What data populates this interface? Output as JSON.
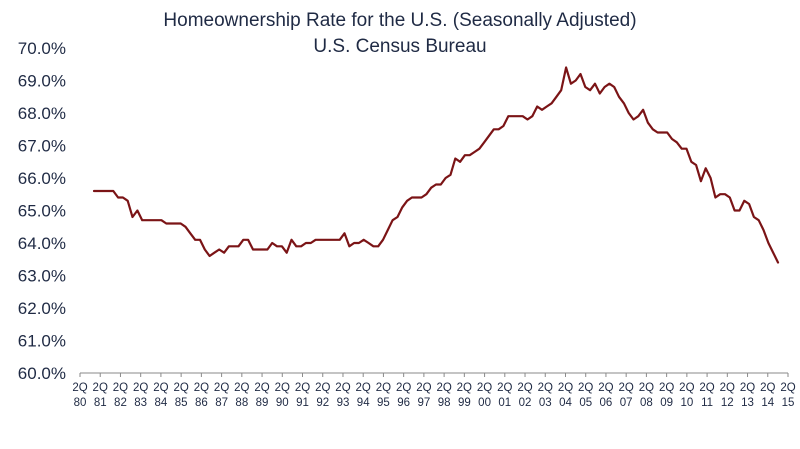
{
  "chart_data": {
    "type": "line",
    "title": "Homeownership Rate for the U.S. (Seasonally Adjusted)",
    "subtitle": "U.S. Census Bureau",
    "xlabel": "",
    "ylabel": "",
    "ylim": [
      60.0,
      70.0
    ],
    "y_tick_labels": [
      "60.0%",
      "61.0%",
      "62.0%",
      "63.0%",
      "64.0%",
      "65.0%",
      "66.0%",
      "67.0%",
      "68.0%",
      "69.0%",
      "70.0%"
    ],
    "x_tick_labels": [
      {
        "q": "2Q",
        "yr": "80"
      },
      {
        "q": "2Q",
        "yr": "81"
      },
      {
        "q": "2Q",
        "yr": "82"
      },
      {
        "q": "2Q",
        "yr": "83"
      },
      {
        "q": "2Q",
        "yr": "84"
      },
      {
        "q": "2Q",
        "yr": "85"
      },
      {
        "q": "2Q",
        "yr": "86"
      },
      {
        "q": "2Q",
        "yr": "87"
      },
      {
        "q": "2Q",
        "yr": "88"
      },
      {
        "q": "2Q",
        "yr": "89"
      },
      {
        "q": "2Q",
        "yr": "90"
      },
      {
        "q": "2Q",
        "yr": "91"
      },
      {
        "q": "2Q",
        "yr": "92"
      },
      {
        "q": "2Q",
        "yr": "93"
      },
      {
        "q": "2Q",
        "yr": "94"
      },
      {
        "q": "2Q",
        "yr": "95"
      },
      {
        "q": "2Q",
        "yr": "96"
      },
      {
        "q": "2Q",
        "yr": "97"
      },
      {
        "q": "2Q",
        "yr": "98"
      },
      {
        "q": "2Q",
        "yr": "99"
      },
      {
        "q": "2Q",
        "yr": "00"
      },
      {
        "q": "2Q",
        "yr": "01"
      },
      {
        "q": "2Q",
        "yr": "02"
      },
      {
        "q": "2Q",
        "yr": "03"
      },
      {
        "q": "2Q",
        "yr": "04"
      },
      {
        "q": "2Q",
        "yr": "05"
      },
      {
        "q": "2Q",
        "yr": "06"
      },
      {
        "q": "2Q",
        "yr": "07"
      },
      {
        "q": "2Q",
        "yr": "08"
      },
      {
        "q": "2Q",
        "yr": "09"
      },
      {
        "q": "2Q",
        "yr": "10"
      },
      {
        "q": "2Q",
        "yr": "11"
      },
      {
        "q": "2Q",
        "yr": "12"
      },
      {
        "q": "2Q",
        "yr": "13"
      },
      {
        "q": "2Q",
        "yr": "14"
      },
      {
        "q": "2Q",
        "yr": "15"
      }
    ],
    "grid": false,
    "legend": "none",
    "line_color": "#7b1416",
    "text_color": "#1f2a44",
    "series": [
      {
        "values": [
          65.6,
          65.6,
          65.6,
          65.6,
          65.6,
          65.4,
          65.4,
          65.3,
          64.8,
          65.0,
          64.7,
          64.7,
          64.7,
          64.7,
          64.7,
          64.6,
          64.6,
          64.6,
          64.6,
          64.5,
          64.3,
          64.1,
          64.1,
          63.8,
          63.6,
          63.7,
          63.8,
          63.7,
          63.9,
          63.9,
          63.9,
          64.1,
          64.1,
          63.8,
          63.8,
          63.8,
          63.8,
          64.0,
          63.9,
          63.9,
          63.7,
          64.1,
          63.9,
          63.9,
          64.0,
          64.0,
          64.1,
          64.1,
          64.1,
          64.1,
          64.1,
          64.1,
          64.3,
          63.9,
          64.0,
          64.0,
          64.1,
          64.0,
          63.9,
          63.9,
          64.1,
          64.4,
          64.7,
          64.8,
          65.1,
          65.3,
          65.4,
          65.4,
          65.4,
          65.5,
          65.7,
          65.8,
          65.8,
          66.0,
          66.1,
          66.6,
          66.5,
          66.7,
          66.7,
          66.8,
          66.9,
          67.1,
          67.3,
          67.5,
          67.5,
          67.6,
          67.9,
          67.9,
          67.9,
          67.9,
          67.8,
          67.9,
          68.2,
          68.1,
          68.2,
          68.3,
          68.5,
          68.7,
          69.4,
          68.9,
          69.0,
          69.2,
          68.8,
          68.7,
          68.9,
          68.6,
          68.8,
          68.9,
          68.8,
          68.5,
          68.3,
          68.0,
          67.8,
          67.9,
          68.1,
          67.7,
          67.5,
          67.4,
          67.4,
          67.4,
          67.2,
          67.1,
          66.9,
          66.9,
          66.5,
          66.4,
          65.9,
          66.3,
          66.0,
          65.4,
          65.5,
          65.5,
          65.4,
          65.0,
          65.0,
          65.3,
          65.2,
          64.8,
          64.7,
          64.4,
          64.0,
          63.7,
          63.4
        ]
      }
    ]
  }
}
